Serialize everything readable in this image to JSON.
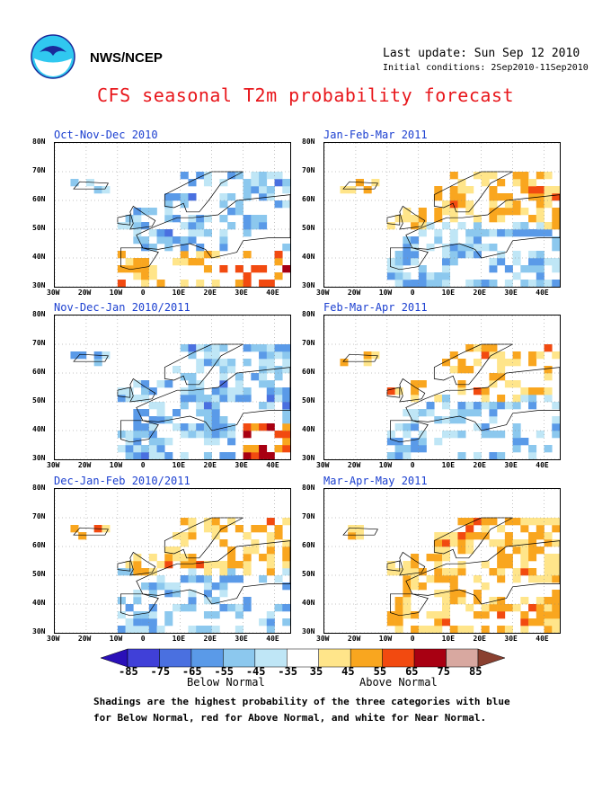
{
  "header": {
    "org": "NWS/NCEP",
    "last_update": "Last update: Sun Sep 12 2010",
    "initial_conditions": "Initial conditions: 2Sep2010-11Sep2010",
    "title": "CFS seasonal T2m probability forecast"
  },
  "axes": {
    "lat_labels": [
      "80N",
      "70N",
      "60N",
      "50N",
      "40N",
      "30N"
    ],
    "lon_labels": [
      "30W",
      "20W",
      "10W",
      "0",
      "10E",
      "20E",
      "30E",
      "40E"
    ]
  },
  "chart_data": [
    {
      "type": "heatmap",
      "title": "Oct-Nov-Dec 2010",
      "anomaly": "below",
      "near_normal_share": 0.45,
      "above_south": true,
      "above_north": false,
      "strong_above_se": true
    },
    {
      "type": "heatmap",
      "title": "Jan-Feb-Mar 2011",
      "anomaly": "mixed",
      "near_normal_share": 0.35,
      "above_south": false,
      "above_north": true,
      "strong_above_se": false
    },
    {
      "type": "heatmap",
      "title": "Nov-Dec-Jan 2010/2011",
      "anomaly": "below",
      "near_normal_share": 0.35,
      "above_south": false,
      "above_north": false,
      "strong_above_se": true
    },
    {
      "type": "heatmap",
      "title": "Feb-Mar-Apr 2011",
      "anomaly": "mixed",
      "near_normal_share": 0.55,
      "above_south": false,
      "above_north": true,
      "strong_above_se": false
    },
    {
      "type": "heatmap",
      "title": "Dec-Jan-Feb 2010/2011",
      "anomaly": "mixed",
      "near_normal_share": 0.45,
      "above_south": false,
      "above_north": true,
      "strong_above_se": false
    },
    {
      "type": "heatmap",
      "title": "Mar-Apr-May 2011",
      "anomaly": "above",
      "near_normal_share": 0.35,
      "above_south": true,
      "above_north": true,
      "strong_above_se": false
    }
  ],
  "colorbar": {
    "labels": [
      "-85",
      "-75",
      "-65",
      "-55",
      "-45",
      "-35",
      "35",
      "45",
      "55",
      "65",
      "75",
      "85"
    ],
    "colors": [
      "#2a10b8",
      "#4040d8",
      "#4a70e0",
      "#5a9ae8",
      "#8cc8ee",
      "#bfe6f6",
      "#ffffff",
      "#ffe58a",
      "#f9a61f",
      "#f24a10",
      "#a80012",
      "#d8a8a0",
      "#8a4030"
    ],
    "below_label": "Below Normal",
    "above_label": "Above Normal"
  },
  "footnote": {
    "line1": "Shadings are the highest probability of the three categories with blue",
    "line2": "for Below Normal, red for Above Normal, and white for Near Normal."
  }
}
